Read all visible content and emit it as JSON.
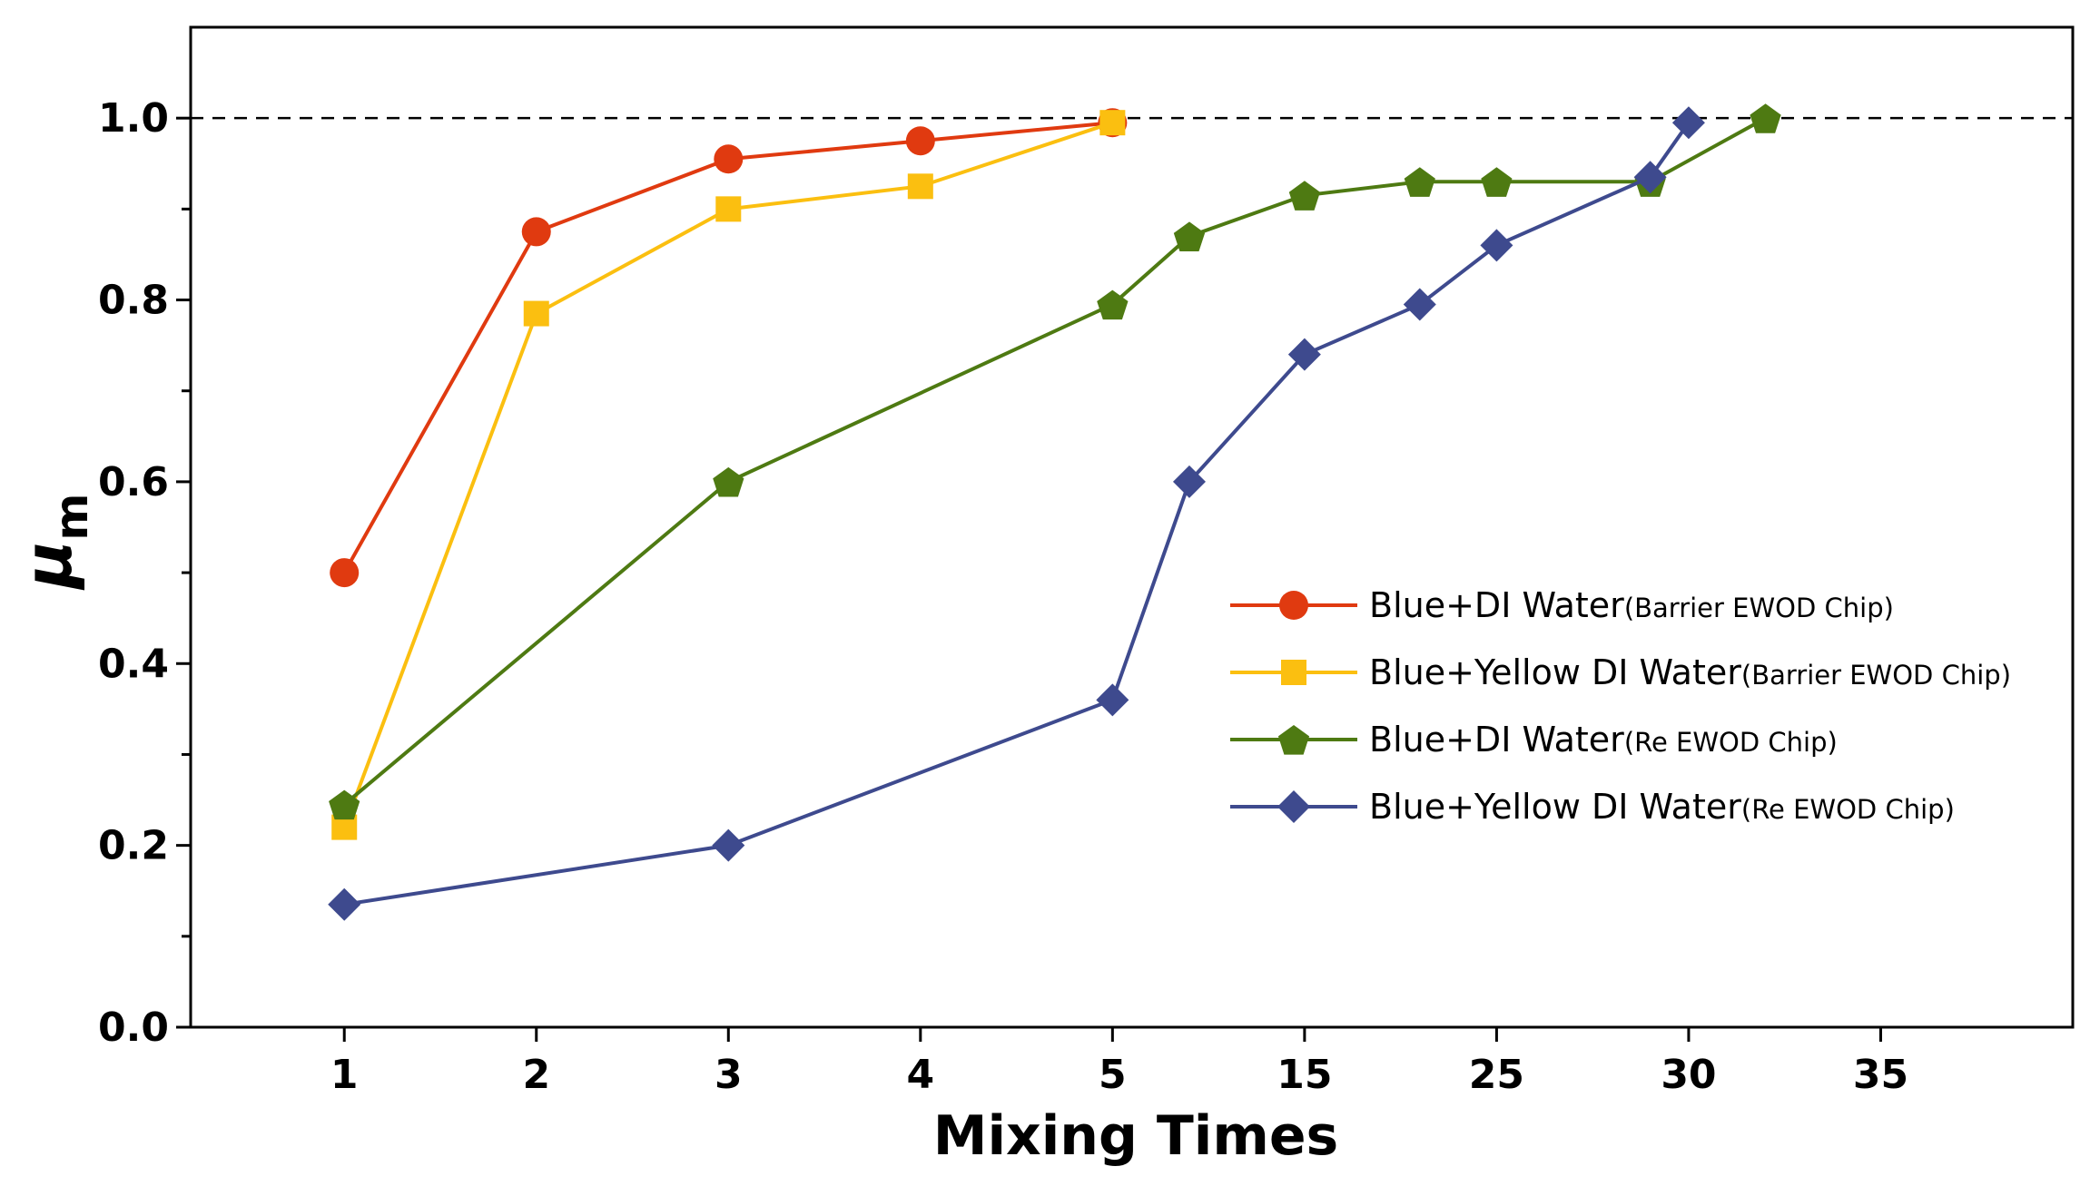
{
  "chart_data": {
    "type": "line",
    "title": "",
    "xlabel": "Mixing Times",
    "ylabel_main": "μ",
    "ylabel_sub": "m",
    "ylim": [
      0.0,
      1.1
    ],
    "y_ticks": [
      "0.0",
      "0.2",
      "0.4",
      "0.6",
      "0.8",
      "1.0"
    ],
    "y_tick_values": [
      0.0,
      0.2,
      0.4,
      0.6,
      0.8,
      1.0
    ],
    "y_minor_tick_values": [
      0.1,
      0.3,
      0.5,
      0.7,
      0.9
    ],
    "x_ticks": [
      "1",
      "2",
      "3",
      "4",
      "5",
      "15",
      "25",
      "30",
      "35"
    ],
    "x_tick_positions": [
      1,
      2,
      3,
      4,
      5,
      6,
      7,
      8,
      9
    ],
    "xlim": [
      0.2,
      10.0
    ],
    "reference_line": {
      "y": 1.0,
      "style": "dashed"
    },
    "legend_position": "center-right",
    "series": [
      {
        "name": "Blue+DI Water",
        "suffix": "(Barrier EWOD Chip)",
        "color": "#E03A10",
        "marker": "circle",
        "x": [
          1,
          2,
          3,
          4,
          5
        ],
        "values": [
          0.5,
          0.875,
          0.955,
          0.975,
          0.995
        ]
      },
      {
        "name": "Blue+Yellow DI Water",
        "suffix": "(Barrier EWOD Chip)",
        "color": "#FBBF10",
        "marker": "square",
        "x": [
          1,
          2,
          3,
          4,
          5
        ],
        "values": [
          0.22,
          0.785,
          0.9,
          0.925,
          0.995
        ]
      },
      {
        "name": "Blue+DI Water",
        "suffix": "(Re EWOD Chip)",
        "color": "#4E7A12",
        "marker": "pentagon",
        "x": [
          1,
          3,
          5,
          5.4,
          6,
          6.6,
          7,
          7.8,
          8.4
        ],
        "values": [
          0.245,
          0.6,
          0.795,
          0.87,
          0.915,
          0.93,
          0.93,
          0.93,
          1.0
        ]
      },
      {
        "name": "Blue+Yellow DI Water",
        "suffix": "(Re EWOD Chip)",
        "color": "#3E4A8E",
        "marker": "diamond",
        "x": [
          1,
          3,
          5,
          5.4,
          6,
          6.6,
          7,
          7.8,
          8
        ],
        "values": [
          0.135,
          0.2,
          0.36,
          0.6,
          0.74,
          0.795,
          0.86,
          0.935,
          0.995
        ]
      }
    ]
  }
}
